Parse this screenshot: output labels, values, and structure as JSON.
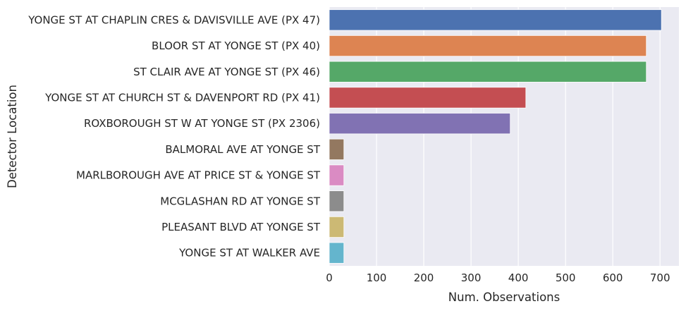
{
  "chart_data": {
    "type": "bar",
    "orientation": "horizontal",
    "xlabel": "Num. Observations",
    "ylabel": "Detector Location",
    "xlim": [
      0,
      740
    ],
    "x_ticks": [
      0,
      100,
      200,
      300,
      400,
      500,
      600,
      700
    ],
    "grid": true,
    "categories": [
      "YONGE ST AT CHAPLIN CRES & DAVISVILLE AVE (PX 47)",
      "BLOOR ST AT YONGE ST (PX 40)",
      "ST CLAIR AVE AT YONGE ST (PX 46)",
      "YONGE ST AT CHURCH ST & DAVENPORT RD (PX 41)",
      "ROXBOROUGH ST W AT YONGE ST (PX 2306)",
      "BALMORAL AVE AT YONGE ST",
      "MARLBOROUGH AVE AT PRICE ST & YONGE ST",
      "MCGLASHAN RD AT YONGE ST",
      "PLEASANT BLVD AT YONGE ST",
      "YONGE ST AT WALKER AVE"
    ],
    "values": [
      703,
      671,
      671,
      416,
      383,
      31,
      31,
      31,
      31,
      31
    ],
    "colors": [
      "#4c72b0",
      "#dd8452",
      "#55a868",
      "#c44e52",
      "#8172b3",
      "#937860",
      "#da8bc3",
      "#8c8c8c",
      "#ccb974",
      "#64b5cd"
    ],
    "background_color": "#eaeaf2",
    "grid_color": "#ffffff"
  }
}
